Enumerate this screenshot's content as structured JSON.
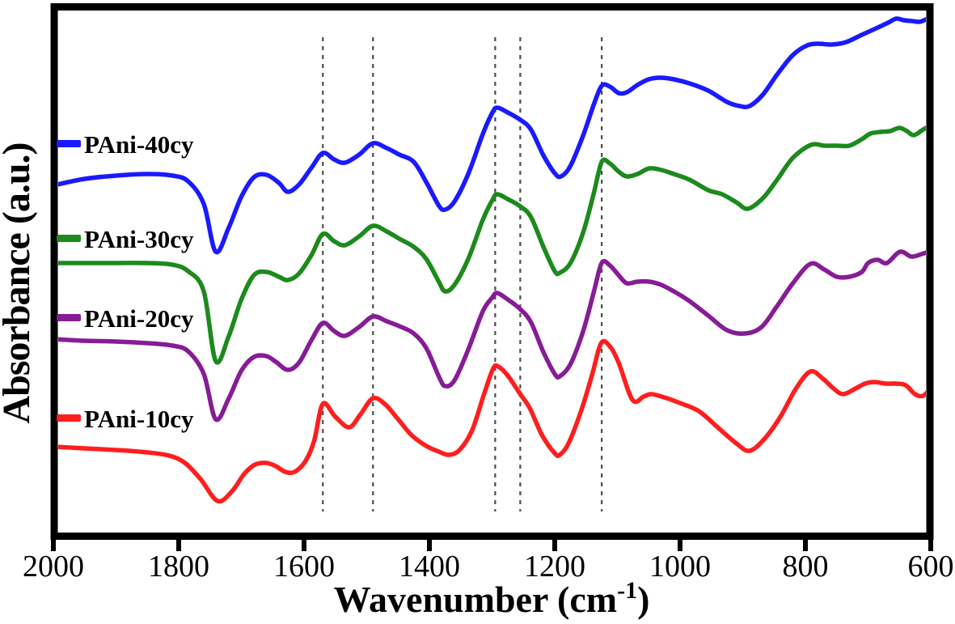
{
  "figure": {
    "background": "#ffffff",
    "ylabel": "Absorbance (a.u.)",
    "xlabel_full": "Wavenumber (cm⁻¹)",
    "xlabel_prefix": "Wavenumber (cm",
    "xlabel_superscript": "-1",
    "xlabel_suffix": ")"
  },
  "chart_data": {
    "type": "line",
    "title": "",
    "xlabel": "Wavenumber (cm⁻¹)",
    "ylabel": "Absorbance (a.u.)",
    "grid": false,
    "legend_position": "stacked at left, one entry beside each curve baseline",
    "x_axis": {
      "min": 600,
      "max": 2000,
      "reversed": true,
      "label_ticks": [
        2000,
        1800,
        1600,
        1400,
        1200,
        1000,
        800,
        600
      ]
    },
    "y_axis": {
      "units": "absorbance, arbitrary units",
      "min": 0,
      "max": 660,
      "ticks": []
    },
    "reference_lines": {
      "style": "dashed",
      "color": "#4d4d4d",
      "wavenumbers": [
        1570,
        1490,
        1295,
        1255,
        1125
      ]
    },
    "axis_color": "#000000",
    "series": [
      {
        "name": "PAni-40cy",
        "color": "#1a1aff",
        "points": [
          [
            2000,
            439
          ],
          [
            1950,
            447
          ],
          [
            1900,
            451
          ],
          [
            1850,
            453
          ],
          [
            1810,
            451
          ],
          [
            1785,
            444
          ],
          [
            1760,
            416
          ],
          [
            1741,
            357
          ],
          [
            1720,
            387
          ],
          [
            1700,
            425
          ],
          [
            1680,
            449
          ],
          [
            1660,
            452
          ],
          [
            1640,
            442
          ],
          [
            1626,
            431
          ],
          [
            1608,
            440
          ],
          [
            1588,
            461
          ],
          [
            1570,
            479
          ],
          [
            1552,
            471
          ],
          [
            1535,
            467
          ],
          [
            1512,
            477
          ],
          [
            1490,
            491
          ],
          [
            1468,
            485
          ],
          [
            1448,
            477
          ],
          [
            1425,
            468
          ],
          [
            1405,
            443
          ],
          [
            1385,
            414
          ],
          [
            1375,
            409
          ],
          [
            1360,
            419
          ],
          [
            1338,
            453
          ],
          [
            1315,
            502
          ],
          [
            1300,
            528
          ],
          [
            1292,
            535
          ],
          [
            1275,
            529
          ],
          [
            1255,
            520
          ],
          [
            1238,
            508
          ],
          [
            1218,
            476
          ],
          [
            1200,
            454
          ],
          [
            1190,
            450
          ],
          [
            1175,
            463
          ],
          [
            1155,
            500
          ],
          [
            1138,
            538
          ],
          [
            1125,
            562
          ],
          [
            1112,
            561
          ],
          [
            1098,
            553
          ],
          [
            1085,
            554
          ],
          [
            1068,
            563
          ],
          [
            1050,
            570
          ],
          [
            1032,
            572
          ],
          [
            1010,
            570
          ],
          [
            985,
            565
          ],
          [
            955,
            556
          ],
          [
            925,
            542
          ],
          [
            905,
            537
          ],
          [
            889,
            537
          ],
          [
            868,
            551
          ],
          [
            845,
            576
          ],
          [
            820,
            600
          ],
          [
            797,
            612
          ],
          [
            780,
            614
          ],
          [
            758,
            613
          ],
          [
            735,
            616
          ],
          [
            710,
            625
          ],
          [
            690,
            632
          ],
          [
            668,
            640
          ],
          [
            655,
            645
          ],
          [
            643,
            643
          ],
          [
            630,
            642
          ],
          [
            618,
            641
          ],
          [
            608,
            644
          ],
          [
            600,
            648
          ]
        ]
      },
      {
        "name": "PAni-30cy",
        "color": "#1c8a1c",
        "points": [
          [
            2000,
            343
          ],
          [
            1950,
            343
          ],
          [
            1900,
            343
          ],
          [
            1850,
            343
          ],
          [
            1810,
            341
          ],
          [
            1785,
            333
          ],
          [
            1760,
            308
          ],
          [
            1741,
            222
          ],
          [
            1720,
            253
          ],
          [
            1700,
            298
          ],
          [
            1680,
            328
          ],
          [
            1660,
            332
          ],
          [
            1640,
            326
          ],
          [
            1626,
            322
          ],
          [
            1608,
            330
          ],
          [
            1588,
            353
          ],
          [
            1570,
            379
          ],
          [
            1552,
            370
          ],
          [
            1535,
            365
          ],
          [
            1512,
            376
          ],
          [
            1490,
            389
          ],
          [
            1468,
            382
          ],
          [
            1448,
            373
          ],
          [
            1425,
            363
          ],
          [
            1405,
            348
          ],
          [
            1385,
            320
          ],
          [
            1375,
            308
          ],
          [
            1360,
            316
          ],
          [
            1338,
            348
          ],
          [
            1315,
            396
          ],
          [
            1300,
            420
          ],
          [
            1292,
            428
          ],
          [
            1275,
            422
          ],
          [
            1255,
            413
          ],
          [
            1238,
            400
          ],
          [
            1218,
            363
          ],
          [
            1200,
            333
          ],
          [
            1192,
            331
          ],
          [
            1175,
            343
          ],
          [
            1155,
            380
          ],
          [
            1138,
            428
          ],
          [
            1125,
            468
          ],
          [
            1112,
            466
          ],
          [
            1098,
            456
          ],
          [
            1085,
            450
          ],
          [
            1068,
            453
          ],
          [
            1049,
            460
          ],
          [
            1030,
            458
          ],
          [
            1010,
            453
          ],
          [
            985,
            446
          ],
          [
            955,
            433
          ],
          [
            933,
            428
          ],
          [
            910,
            418
          ],
          [
            892,
            410
          ],
          [
            868,
            423
          ],
          [
            845,
            446
          ],
          [
            820,
            473
          ],
          [
            791,
            489
          ],
          [
            770,
            488
          ],
          [
            750,
            488
          ],
          [
            730,
            488
          ],
          [
            710,
            496
          ],
          [
            696,
            503
          ],
          [
            680,
            505
          ],
          [
            665,
            506
          ],
          [
            650,
            510
          ],
          [
            638,
            506
          ],
          [
            627,
            501
          ],
          [
            612,
            508
          ],
          [
            600,
            513
          ]
        ]
      },
      {
        "name": "PAni-20cy",
        "color": "#861c96",
        "points": [
          [
            2000,
            249
          ],
          [
            1950,
            247
          ],
          [
            1900,
            246
          ],
          [
            1850,
            244
          ],
          [
            1810,
            241
          ],
          [
            1785,
            234
          ],
          [
            1760,
            206
          ],
          [
            1741,
            150
          ],
          [
            1720,
            176
          ],
          [
            1700,
            210
          ],
          [
            1680,
            227
          ],
          [
            1660,
            228
          ],
          [
            1645,
            221
          ],
          [
            1626,
            211
          ],
          [
            1608,
            220
          ],
          [
            1588,
            248
          ],
          [
            1570,
            269
          ],
          [
            1552,
            259
          ],
          [
            1535,
            253
          ],
          [
            1512,
            264
          ],
          [
            1490,
            277
          ],
          [
            1468,
            271
          ],
          [
            1448,
            265
          ],
          [
            1425,
            256
          ],
          [
            1405,
            238
          ],
          [
            1385,
            203
          ],
          [
            1375,
            191
          ],
          [
            1360,
            198
          ],
          [
            1338,
            236
          ],
          [
            1315,
            283
          ],
          [
            1300,
            300
          ],
          [
            1292,
            306
          ],
          [
            1275,
            298
          ],
          [
            1255,
            286
          ],
          [
            1238,
            270
          ],
          [
            1218,
            233
          ],
          [
            1200,
            206
          ],
          [
            1192,
            203
          ],
          [
            1175,
            218
          ],
          [
            1155,
            258
          ],
          [
            1138,
            306
          ],
          [
            1125,
            343
          ],
          [
            1112,
            340
          ],
          [
            1098,
            328
          ],
          [
            1085,
            318
          ],
          [
            1068,
            320
          ],
          [
            1049,
            320
          ],
          [
            1030,
            316
          ],
          [
            1010,
            308
          ],
          [
            985,
            296
          ],
          [
            955,
            278
          ],
          [
            925,
            260
          ],
          [
            896,
            256
          ],
          [
            870,
            264
          ],
          [
            845,
            290
          ],
          [
            820,
            318
          ],
          [
            792,
            342
          ],
          [
            770,
            335
          ],
          [
            750,
            326
          ],
          [
            730,
            326
          ],
          [
            710,
            332
          ],
          [
            700,
            343
          ],
          [
            685,
            347
          ],
          [
            670,
            343
          ],
          [
            649,
            357
          ],
          [
            631,
            351
          ],
          [
            615,
            354
          ],
          [
            600,
            358
          ]
        ]
      },
      {
        "name": "PAni-10cy",
        "color": "#ff1e1e",
        "points": [
          [
            2000,
            116
          ],
          [
            1950,
            114
          ],
          [
            1900,
            112
          ],
          [
            1850,
            109
          ],
          [
            1815,
            105
          ],
          [
            1790,
            96
          ],
          [
            1765,
            76
          ],
          [
            1738,
            49
          ],
          [
            1715,
            61
          ],
          [
            1695,
            83
          ],
          [
            1678,
            94
          ],
          [
            1660,
            96
          ],
          [
            1645,
            92
          ],
          [
            1630,
            85
          ],
          [
            1615,
            85
          ],
          [
            1598,
            98
          ],
          [
            1584,
            123
          ],
          [
            1570,
            169
          ],
          [
            1550,
            153
          ],
          [
            1528,
            140
          ],
          [
            1510,
            156
          ],
          [
            1490,
            176
          ],
          [
            1470,
            168
          ],
          [
            1450,
            150
          ],
          [
            1428,
            130
          ],
          [
            1405,
            117
          ],
          [
            1385,
            110
          ],
          [
            1369,
            106
          ],
          [
            1352,
            112
          ],
          [
            1332,
            136
          ],
          [
            1312,
            183
          ],
          [
            1298,
            213
          ],
          [
            1290,
            215
          ],
          [
            1275,
            204
          ],
          [
            1255,
            181
          ],
          [
            1240,
            164
          ],
          [
            1220,
            130
          ],
          [
            1200,
            108
          ],
          [
            1192,
            106
          ],
          [
            1178,
            120
          ],
          [
            1158,
            160
          ],
          [
            1140,
            206
          ],
          [
            1126,
            244
          ],
          [
            1112,
            240
          ],
          [
            1098,
            220
          ],
          [
            1076,
            174
          ],
          [
            1058,
            178
          ],
          [
            1046,
            181
          ],
          [
            1025,
            177
          ],
          [
            1000,
            170
          ],
          [
            970,
            160
          ],
          [
            940,
            140
          ],
          [
            910,
            120
          ],
          [
            889,
            111
          ],
          [
            865,
            126
          ],
          [
            840,
            153
          ],
          [
            815,
            188
          ],
          [
            792,
            209
          ],
          [
            772,
            200
          ],
          [
            755,
            188
          ],
          [
            740,
            181
          ],
          [
            720,
            188
          ],
          [
            705,
            194
          ],
          [
            690,
            196
          ],
          [
            672,
            194
          ],
          [
            655,
            194
          ],
          [
            640,
            192
          ],
          [
            625,
            181
          ],
          [
            612,
            179
          ],
          [
            600,
            189
          ]
        ]
      }
    ]
  }
}
